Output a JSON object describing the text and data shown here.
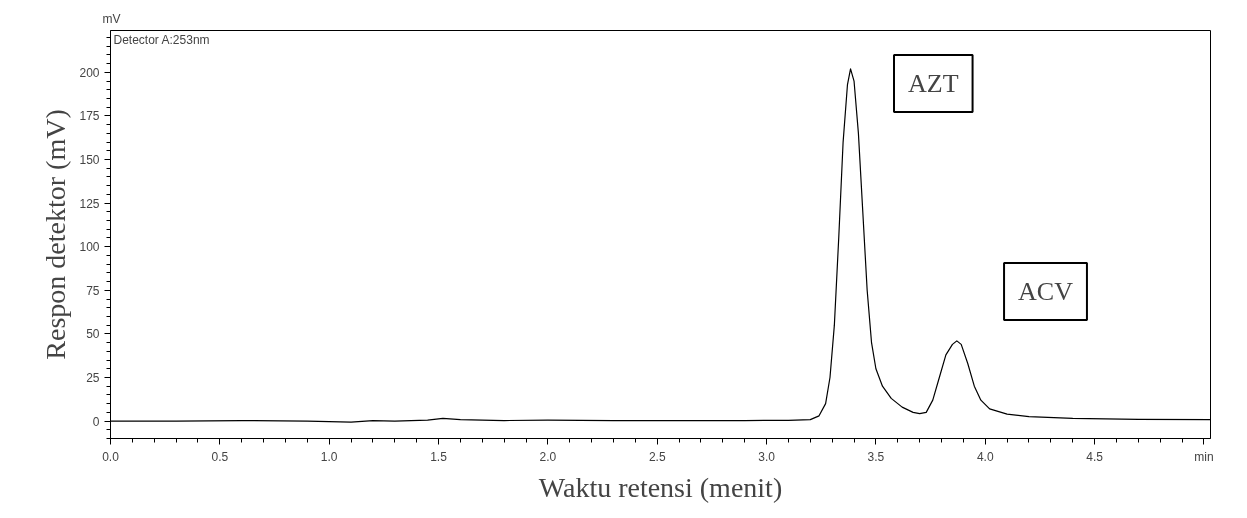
{
  "chart_data": {
    "type": "line",
    "xlabel": "Waktu retensi (menit)",
    "ylabel": "Respon detektor (mV)",
    "x": [
      0,
      0.3,
      0.6,
      0.9,
      1.1,
      1.2,
      1.3,
      1.45,
      1.52,
      1.6,
      1.8,
      2.0,
      2.3,
      2.6,
      2.9,
      3.1,
      3.2,
      3.24,
      3.27,
      3.29,
      3.31,
      3.33,
      3.35,
      3.37,
      3.384,
      3.4,
      3.42,
      3.44,
      3.46,
      3.48,
      3.5,
      3.53,
      3.57,
      3.62,
      3.67,
      3.7,
      3.73,
      3.76,
      3.79,
      3.82,
      3.85,
      3.87,
      3.89,
      3.92,
      3.95,
      3.98,
      4.02,
      4.1,
      4.2,
      4.4,
      4.7,
      5.03
    ],
    "series": [
      {
        "color": "#000000",
        "values": [
          0,
          0,
          0.3,
          0,
          -0.6,
          0.2,
          0,
          0.5,
          1.5,
          0.8,
          0.3,
          0.5,
          0.2,
          0.2,
          0.3,
          0.4,
          0.8,
          3,
          10,
          25,
          55,
          105,
          160,
          193,
          202,
          195,
          165,
          120,
          75,
          45,
          30,
          20,
          13,
          8,
          5,
          4.3,
          5,
          12,
          25,
          38,
          44,
          46,
          44,
          33,
          20,
          12,
          7,
          4,
          2.5,
          1.5,
          1,
          0.8
        ]
      }
    ],
    "xlim": [
      0,
      5.03
    ],
    "ylim": [
      -10,
      224
    ],
    "xticks": [
      {
        "value": 0,
        "label": "0.0"
      },
      0.5,
      {
        "value": 1,
        "label": "1.0"
      },
      1.5,
      {
        "value": 2,
        "label": "2.0"
      },
      2.5,
      {
        "value": 3,
        "label": "3.0"
      },
      3.5,
      {
        "value": 4,
        "label": "4.0"
      },
      4.5,
      {
        "value": 5,
        "label": "min"
      }
    ],
    "yticks": [
      0,
      25,
      50,
      75,
      100,
      125,
      150,
      175,
      200
    ],
    "grid": false,
    "marker": "none",
    "line_style": "solid",
    "annotations": [
      "Detector A:253nm",
      "mV",
      "AZT",
      "ACV"
    ]
  }
}
